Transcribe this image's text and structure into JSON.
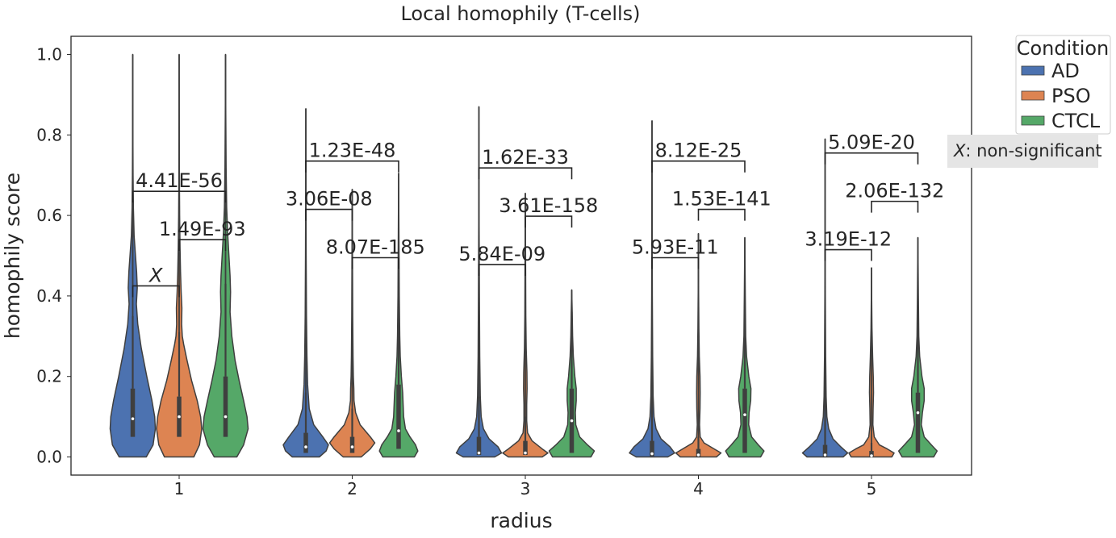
{
  "chart_data": {
    "type": "violin",
    "title": "Local homophily (T-cells)",
    "xlabel": "radius",
    "ylabel": "homophily score",
    "ylim": [
      -0.045,
      1.045
    ],
    "yticks": [
      0.0,
      0.2,
      0.4,
      0.6,
      0.8,
      1.0
    ],
    "ytick_labels": [
      "0.0",
      "0.2",
      "0.4",
      "0.6",
      "0.8",
      "1.0"
    ],
    "categories": [
      "1",
      "2",
      "3",
      "4",
      "5"
    ],
    "grid": false,
    "legend": {
      "title": "Condition",
      "placement": "outside-top-right",
      "entries": [
        {
          "name": "AD",
          "color": "#4C72B0"
        },
        {
          "name": "PSO",
          "color": "#DD8452"
        },
        {
          "name": "CTCL",
          "color": "#55A868"
        }
      ]
    },
    "note": {
      "symbol": "X",
      "text": ": non-significant"
    },
    "series": [
      {
        "name": "AD",
        "color": "#4C72B0",
        "max": [
          1.0,
          0.865,
          0.87,
          0.835,
          0.79
        ],
        "median": [
          0.095,
          0.025,
          0.01,
          0.008,
          0.005
        ],
        "q1": [
          0.05,
          0.01,
          0.005,
          0.002,
          0.0
        ],
        "q3": [
          0.17,
          0.06,
          0.05,
          0.04,
          0.03
        ],
        "whisker_high": [
          0.35,
          0.16,
          0.15,
          0.15,
          0.17
        ],
        "density": [
          [
            [
              0.0,
              0.6
            ],
            [
              0.03,
              0.9
            ],
            [
              0.07,
              1.0
            ],
            [
              0.1,
              0.97
            ],
            [
              0.14,
              0.85
            ],
            [
              0.2,
              0.62
            ],
            [
              0.27,
              0.38
            ],
            [
              0.33,
              0.22
            ],
            [
              0.38,
              0.16
            ],
            [
              0.42,
              0.2
            ],
            [
              0.46,
              0.17
            ],
            [
              0.5,
              0.12
            ],
            [
              0.55,
              0.06
            ],
            [
              0.62,
              0.03
            ],
            [
              0.7,
              0.015
            ],
            [
              0.8,
              0.008
            ],
            [
              0.9,
              0.004
            ],
            [
              1.0,
              0.0
            ]
          ],
          [
            [
              0.0,
              0.6
            ],
            [
              0.015,
              0.9
            ],
            [
              0.03,
              1.0
            ],
            [
              0.05,
              0.75
            ],
            [
              0.08,
              0.35
            ],
            [
              0.12,
              0.15
            ],
            [
              0.18,
              0.08
            ],
            [
              0.25,
              0.05
            ],
            [
              0.35,
              0.03
            ],
            [
              0.5,
              0.015
            ],
            [
              0.65,
              0.008
            ],
            [
              0.865,
              0.0
            ]
          ],
          [
            [
              0.0,
              0.7
            ],
            [
              0.01,
              1.0
            ],
            [
              0.025,
              0.85
            ],
            [
              0.045,
              0.45
            ],
            [
              0.07,
              0.2
            ],
            [
              0.1,
              0.1
            ],
            [
              0.15,
              0.06
            ],
            [
              0.25,
              0.035
            ],
            [
              0.4,
              0.02
            ],
            [
              0.6,
              0.008
            ],
            [
              0.87,
              0.0
            ]
          ],
          [
            [
              0.0,
              0.7
            ],
            [
              0.01,
              1.0
            ],
            [
              0.025,
              0.8
            ],
            [
              0.045,
              0.4
            ],
            [
              0.07,
              0.18
            ],
            [
              0.1,
              0.09
            ],
            [
              0.15,
              0.05
            ],
            [
              0.25,
              0.03
            ],
            [
              0.4,
              0.015
            ],
            [
              0.6,
              0.006
            ],
            [
              0.835,
              0.0
            ]
          ],
          [
            [
              0.0,
              0.8
            ],
            [
              0.01,
              1.0
            ],
            [
              0.025,
              0.7
            ],
            [
              0.045,
              0.35
            ],
            [
              0.07,
              0.16
            ],
            [
              0.1,
              0.08
            ],
            [
              0.15,
              0.045
            ],
            [
              0.25,
              0.025
            ],
            [
              0.4,
              0.012
            ],
            [
              0.6,
              0.005
            ],
            [
              0.79,
              0.0
            ]
          ]
        ]
      },
      {
        "name": "PSO",
        "color": "#DD8452",
        "max": [
          1.0,
          0.665,
          0.655,
          0.555,
          0.47
        ],
        "median": [
          0.1,
          0.025,
          0.01,
          0.005,
          0.003
        ],
        "q1": [
          0.05,
          0.01,
          0.005,
          0.0,
          0.0
        ],
        "q3": [
          0.15,
          0.05,
          0.04,
          0.02,
          0.015
        ],
        "whisker_high": [
          0.31,
          0.12,
          0.1,
          0.05,
          0.035
        ],
        "density": [
          [
            [
              0.0,
              0.65
            ],
            [
              0.03,
              0.9
            ],
            [
              0.07,
              1.0
            ],
            [
              0.1,
              0.95
            ],
            [
              0.14,
              0.8
            ],
            [
              0.19,
              0.55
            ],
            [
              0.24,
              0.35
            ],
            [
              0.28,
              0.2
            ],
            [
              0.3,
              0.14
            ],
            [
              0.33,
              0.11
            ],
            [
              0.37,
              0.12
            ],
            [
              0.41,
              0.09
            ],
            [
              0.46,
              0.06
            ],
            [
              0.52,
              0.04
            ],
            [
              0.6,
              0.02
            ],
            [
              0.7,
              0.01
            ],
            [
              0.85,
              0.005
            ],
            [
              1.0,
              0.0
            ]
          ],
          [
            [
              0.0,
              0.4
            ],
            [
              0.02,
              0.8
            ],
            [
              0.035,
              1.0
            ],
            [
              0.05,
              0.8
            ],
            [
              0.08,
              0.35
            ],
            [
              0.11,
              0.15
            ],
            [
              0.14,
              0.08
            ],
            [
              0.17,
              0.07
            ],
            [
              0.2,
              0.05
            ],
            [
              0.25,
              0.035
            ],
            [
              0.35,
              0.02
            ],
            [
              0.5,
              0.01
            ],
            [
              0.665,
              0.0
            ]
          ],
          [
            [
              0.0,
              0.75
            ],
            [
              0.01,
              1.0
            ],
            [
              0.02,
              0.75
            ],
            [
              0.04,
              0.3
            ],
            [
              0.06,
              0.1
            ],
            [
              0.09,
              0.06
            ],
            [
              0.13,
              0.06
            ],
            [
              0.17,
              0.08
            ],
            [
              0.21,
              0.07
            ],
            [
              0.27,
              0.04
            ],
            [
              0.35,
              0.02
            ],
            [
              0.5,
              0.01
            ],
            [
              0.655,
              0.0
            ]
          ],
          [
            [
              0.0,
              0.8
            ],
            [
              0.01,
              1.0
            ],
            [
              0.02,
              0.7
            ],
            [
              0.035,
              0.25
            ],
            [
              0.05,
              0.08
            ],
            [
              0.08,
              0.05
            ],
            [
              0.12,
              0.07
            ],
            [
              0.16,
              0.08
            ],
            [
              0.2,
              0.07
            ],
            [
              0.25,
              0.04
            ],
            [
              0.32,
              0.02
            ],
            [
              0.42,
              0.008
            ],
            [
              0.555,
              0.0
            ]
          ],
          [
            [
              0.0,
              0.9
            ],
            [
              0.01,
              1.0
            ],
            [
              0.02,
              0.7
            ],
            [
              0.03,
              0.35
            ],
            [
              0.05,
              0.12
            ],
            [
              0.08,
              0.06
            ],
            [
              0.12,
              0.07
            ],
            [
              0.16,
              0.09
            ],
            [
              0.2,
              0.08
            ],
            [
              0.25,
              0.05
            ],
            [
              0.32,
              0.02
            ],
            [
              0.4,
              0.008
            ],
            [
              0.47,
              0.0
            ]
          ]
        ]
      },
      {
        "name": "CTCL",
        "color": "#55A868",
        "max": [
          1.0,
          0.705,
          0.415,
          0.545,
          0.545
        ],
        "median": [
          0.1,
          0.065,
          0.09,
          0.105,
          0.11
        ],
        "q1": [
          0.05,
          0.02,
          0.01,
          0.01,
          0.01
        ],
        "q3": [
          0.2,
          0.18,
          0.17,
          0.17,
          0.16
        ],
        "whisker_high": [
          0.43,
          0.37,
          0.36,
          0.35,
          0.33
        ],
        "density": [
          [
            [
              0.0,
              0.5
            ],
            [
              0.03,
              0.8
            ],
            [
              0.07,
              1.0
            ],
            [
              0.1,
              0.95
            ],
            [
              0.14,
              0.8
            ],
            [
              0.19,
              0.6
            ],
            [
              0.24,
              0.42
            ],
            [
              0.3,
              0.28
            ],
            [
              0.36,
              0.2
            ],
            [
              0.41,
              0.22
            ],
            [
              0.45,
              0.2
            ],
            [
              0.5,
              0.15
            ],
            [
              0.55,
              0.1
            ],
            [
              0.62,
              0.05
            ],
            [
              0.72,
              0.025
            ],
            [
              0.85,
              0.01
            ],
            [
              1.0,
              0.0
            ]
          ],
          [
            [
              0.0,
              0.7
            ],
            [
              0.015,
              0.85
            ],
            [
              0.03,
              0.75
            ],
            [
              0.05,
              0.5
            ],
            [
              0.07,
              0.3
            ],
            [
              0.1,
              0.22
            ],
            [
              0.13,
              0.2
            ],
            [
              0.16,
              0.18
            ],
            [
              0.2,
              0.12
            ],
            [
              0.25,
              0.07
            ],
            [
              0.3,
              0.05
            ],
            [
              0.4,
              0.03
            ],
            [
              0.55,
              0.015
            ],
            [
              0.705,
              0.0
            ]
          ],
          [
            [
              0.0,
              0.85
            ],
            [
              0.015,
              1.0
            ],
            [
              0.03,
              0.7
            ],
            [
              0.05,
              0.35
            ],
            [
              0.08,
              0.18
            ],
            [
              0.11,
              0.16
            ],
            [
              0.14,
              0.2
            ],
            [
              0.17,
              0.2
            ],
            [
              0.2,
              0.14
            ],
            [
              0.25,
              0.07
            ],
            [
              0.3,
              0.04
            ],
            [
              0.36,
              0.02
            ],
            [
              0.415,
              0.0
            ]
          ],
          [
            [
              0.0,
              0.7
            ],
            [
              0.015,
              0.85
            ],
            [
              0.03,
              0.6
            ],
            [
              0.05,
              0.3
            ],
            [
              0.08,
              0.17
            ],
            [
              0.11,
              0.19
            ],
            [
              0.14,
              0.26
            ],
            [
              0.17,
              0.27
            ],
            [
              0.2,
              0.18
            ],
            [
              0.25,
              0.08
            ],
            [
              0.3,
              0.04
            ],
            [
              0.4,
              0.02
            ],
            [
              0.545,
              0.0
            ]
          ],
          [
            [
              0.0,
              0.7
            ],
            [
              0.015,
              0.85
            ],
            [
              0.03,
              0.6
            ],
            [
              0.05,
              0.28
            ],
            [
              0.08,
              0.15
            ],
            [
              0.11,
              0.2
            ],
            [
              0.14,
              0.28
            ],
            [
              0.17,
              0.28
            ],
            [
              0.2,
              0.18
            ],
            [
              0.25,
              0.08
            ],
            [
              0.3,
              0.04
            ],
            [
              0.4,
              0.02
            ],
            [
              0.545,
              0.0
            ]
          ]
        ]
      }
    ],
    "annotations": [
      {
        "group": 0,
        "from": "AD",
        "to": "PSO",
        "y": 0.425,
        "label": "X",
        "italic": true
      },
      {
        "group": 0,
        "from": "PSO",
        "to": "CTCL",
        "y": 0.54,
        "label": "1.49E-93"
      },
      {
        "group": 0,
        "from": "AD",
        "to": "CTCL",
        "y": 0.66,
        "label": "4.41E-56"
      },
      {
        "group": 1,
        "from": "AD",
        "to": "PSO",
        "y": 0.615,
        "label": "3.06E-08"
      },
      {
        "group": 1,
        "from": "PSO",
        "to": "CTCL",
        "y": 0.495,
        "label": "8.07E-185"
      },
      {
        "group": 1,
        "from": "AD",
        "to": "CTCL",
        "y": 0.735,
        "label": "1.23E-48"
      },
      {
        "group": 2,
        "from": "AD",
        "to": "PSO",
        "y": 0.478,
        "label": "5.84E-09"
      },
      {
        "group": 2,
        "from": "PSO",
        "to": "CTCL",
        "y": 0.598,
        "label": "3.61E-158"
      },
      {
        "group": 2,
        "from": "AD",
        "to": "CTCL",
        "y": 0.718,
        "label": "1.62E-33"
      },
      {
        "group": 3,
        "from": "AD",
        "to": "PSO",
        "y": 0.495,
        "label": "5.93E-11"
      },
      {
        "group": 3,
        "from": "PSO",
        "to": "CTCL",
        "y": 0.615,
        "label": "1.53E-141"
      },
      {
        "group": 3,
        "from": "AD",
        "to": "CTCL",
        "y": 0.735,
        "label": "8.12E-25"
      },
      {
        "group": 4,
        "from": "AD",
        "to": "PSO",
        "y": 0.515,
        "label": "3.19E-12"
      },
      {
        "group": 4,
        "from": "PSO",
        "to": "CTCL",
        "y": 0.635,
        "label": "2.06E-132"
      },
      {
        "group": 4,
        "from": "AD",
        "to": "CTCL",
        "y": 0.755,
        "label": "5.09E-20"
      }
    ]
  }
}
